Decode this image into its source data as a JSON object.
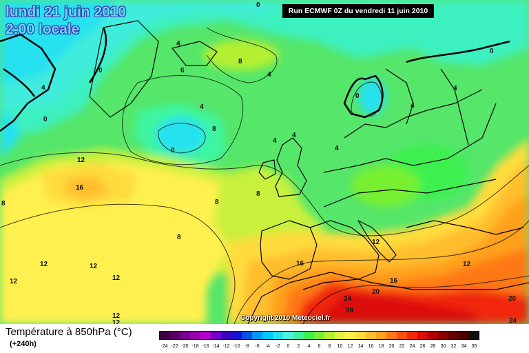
{
  "header": {
    "date": "lundi 21 juin 2010",
    "time": "2:00 locale",
    "run": "Run ECMWF 0Z du vendredi 11 juin 2010"
  },
  "map": {
    "copyright": "Copyright 2010 Meteociel.fr",
    "contour_labels": [
      "0",
      "4",
      "6",
      "8",
      "4",
      "4",
      "0",
      "0",
      "4",
      "8",
      "4",
      "4",
      "0",
      "4",
      "4",
      "0",
      "0",
      "4",
      "12",
      "16",
      "8",
      "8",
      "8",
      "8",
      "12",
      "12",
      "12",
      "12",
      "16",
      "16",
      "12",
      "12",
      "20",
      "24",
      "28",
      "20",
      "24",
      "12",
      "12"
    ]
  },
  "legend": {
    "variable": "Température à 850hPa (°C)",
    "lead": "(+240h)",
    "ticks": [
      "-24",
      "-22",
      "-20",
      "-18",
      "-16",
      "-14",
      "-12",
      "-10",
      "-8",
      "-6",
      "-4",
      "-2",
      "0",
      "2",
      "4",
      "6",
      "8",
      "10",
      "12",
      "14",
      "16",
      "18",
      "20",
      "22",
      "24",
      "26",
      "28",
      "30",
      "32",
      "34",
      "35"
    ],
    "colors": [
      "#3c0040",
      "#5a0064",
      "#7a0090",
      "#9a00b0",
      "#b400c8",
      "#7000c8",
      "#3c00c0",
      "#1414d2",
      "#0050e6",
      "#0096ff",
      "#00c8ff",
      "#28e1f0",
      "#50f0dc",
      "#3cf5a0",
      "#3cf050",
      "#78f032",
      "#b4f032",
      "#e6f046",
      "#fff050",
      "#ffdc3c",
      "#ffbe2d",
      "#ffa01e",
      "#ff7814",
      "#fa500f",
      "#f0280a",
      "#dc0a0a",
      "#b40000",
      "#8c0000",
      "#640000",
      "#460000",
      "#111111"
    ]
  }
}
